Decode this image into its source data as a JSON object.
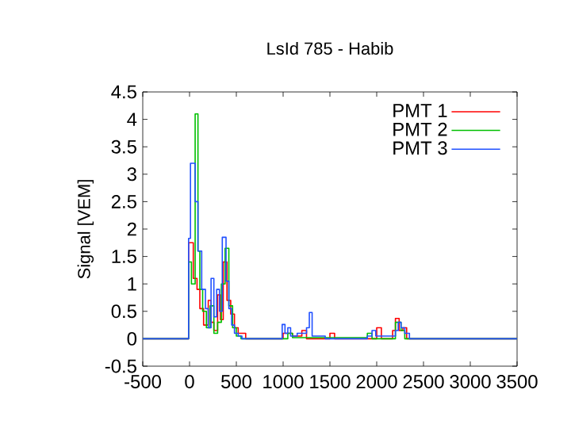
{
  "chart_data": {
    "type": "step",
    "title": "LsId 785 - Habib",
    "ylabel": "Signal [VEM]",
    "xlim": [
      -500,
      3500
    ],
    "xticks": [
      -500,
      0,
      500,
      1000,
      1500,
      2000,
      2500,
      3000,
      3500
    ],
    "ylim": [
      -0.5,
      4.5
    ],
    "yticks": [
      -0.5,
      0,
      0.5,
      1,
      1.5,
      2,
      2.5,
      3,
      3.5,
      4,
      4.5
    ],
    "legend": "top right",
    "grid": false,
    "series": [
      {
        "name": "PMT 1",
        "color": "#ff0000",
        "x": [
          -500,
          -10,
          40,
          80,
          110,
          150,
          200,
          230,
          260,
          300,
          330,
          360,
          400,
          440,
          480,
          520,
          600,
          1000,
          1100,
          1200,
          1250,
          1500,
          1550,
          2000,
          2050,
          2170,
          2200,
          2240,
          2280,
          2320,
          3500
        ],
        "values": [
          0,
          1.75,
          1.1,
          0.9,
          0.55,
          0.25,
          0.7,
          0.3,
          0.15,
          0.8,
          0.35,
          1.4,
          0.7,
          0.45,
          0.2,
          0.1,
          0,
          0.1,
          0.05,
          0.15,
          0,
          0.1,
          0,
          0.2,
          0,
          0.15,
          0.37,
          0.15,
          0.2,
          0,
          0
        ]
      },
      {
        "name": "PMT 2",
        "color": "#00c000",
        "x": [
          -500,
          -10,
          20,
          60,
          90,
          110,
          140,
          180,
          220,
          260,
          300,
          340,
          380,
          420,
          460,
          500,
          550,
          1050,
          1100,
          1900,
          1950,
          2200,
          2260,
          2300,
          3500
        ],
        "values": [
          0,
          1.4,
          1.0,
          4.1,
          1.6,
          0.9,
          0.5,
          0.2,
          0.6,
          0.1,
          0.3,
          1.0,
          1.65,
          0.6,
          0.2,
          0.05,
          0,
          0.1,
          0.02,
          0.1,
          0,
          0.3,
          0.15,
          0,
          0
        ]
      },
      {
        "name": "PMT 3",
        "color": "#2050ff",
        "x": [
          -500,
          -10,
          10,
          60,
          90,
          130,
          170,
          200,
          230,
          260,
          290,
          320,
          350,
          390,
          420,
          450,
          480,
          520,
          560,
          990,
          1020,
          1050,
          1080,
          1150,
          1250,
          1280,
          1310,
          1400,
          1450,
          1900,
          1950,
          1990,
          2200,
          2230,
          2260,
          2300,
          2350,
          3500
        ],
        "values": [
          0,
          1.83,
          3.2,
          2.5,
          1.6,
          0.9,
          0.55,
          0.2,
          1.1,
          0.4,
          0.9,
          0.5,
          1.85,
          1.05,
          0.55,
          0.25,
          0.1,
          0.05,
          0,
          0.26,
          0.1,
          0.2,
          0.05,
          0.1,
          0.2,
          0.48,
          0.05,
          0.05,
          0,
          0.05,
          0.15,
          0.05,
          0.15,
          0.3,
          0.2,
          0.1,
          0,
          0
        ]
      }
    ]
  }
}
